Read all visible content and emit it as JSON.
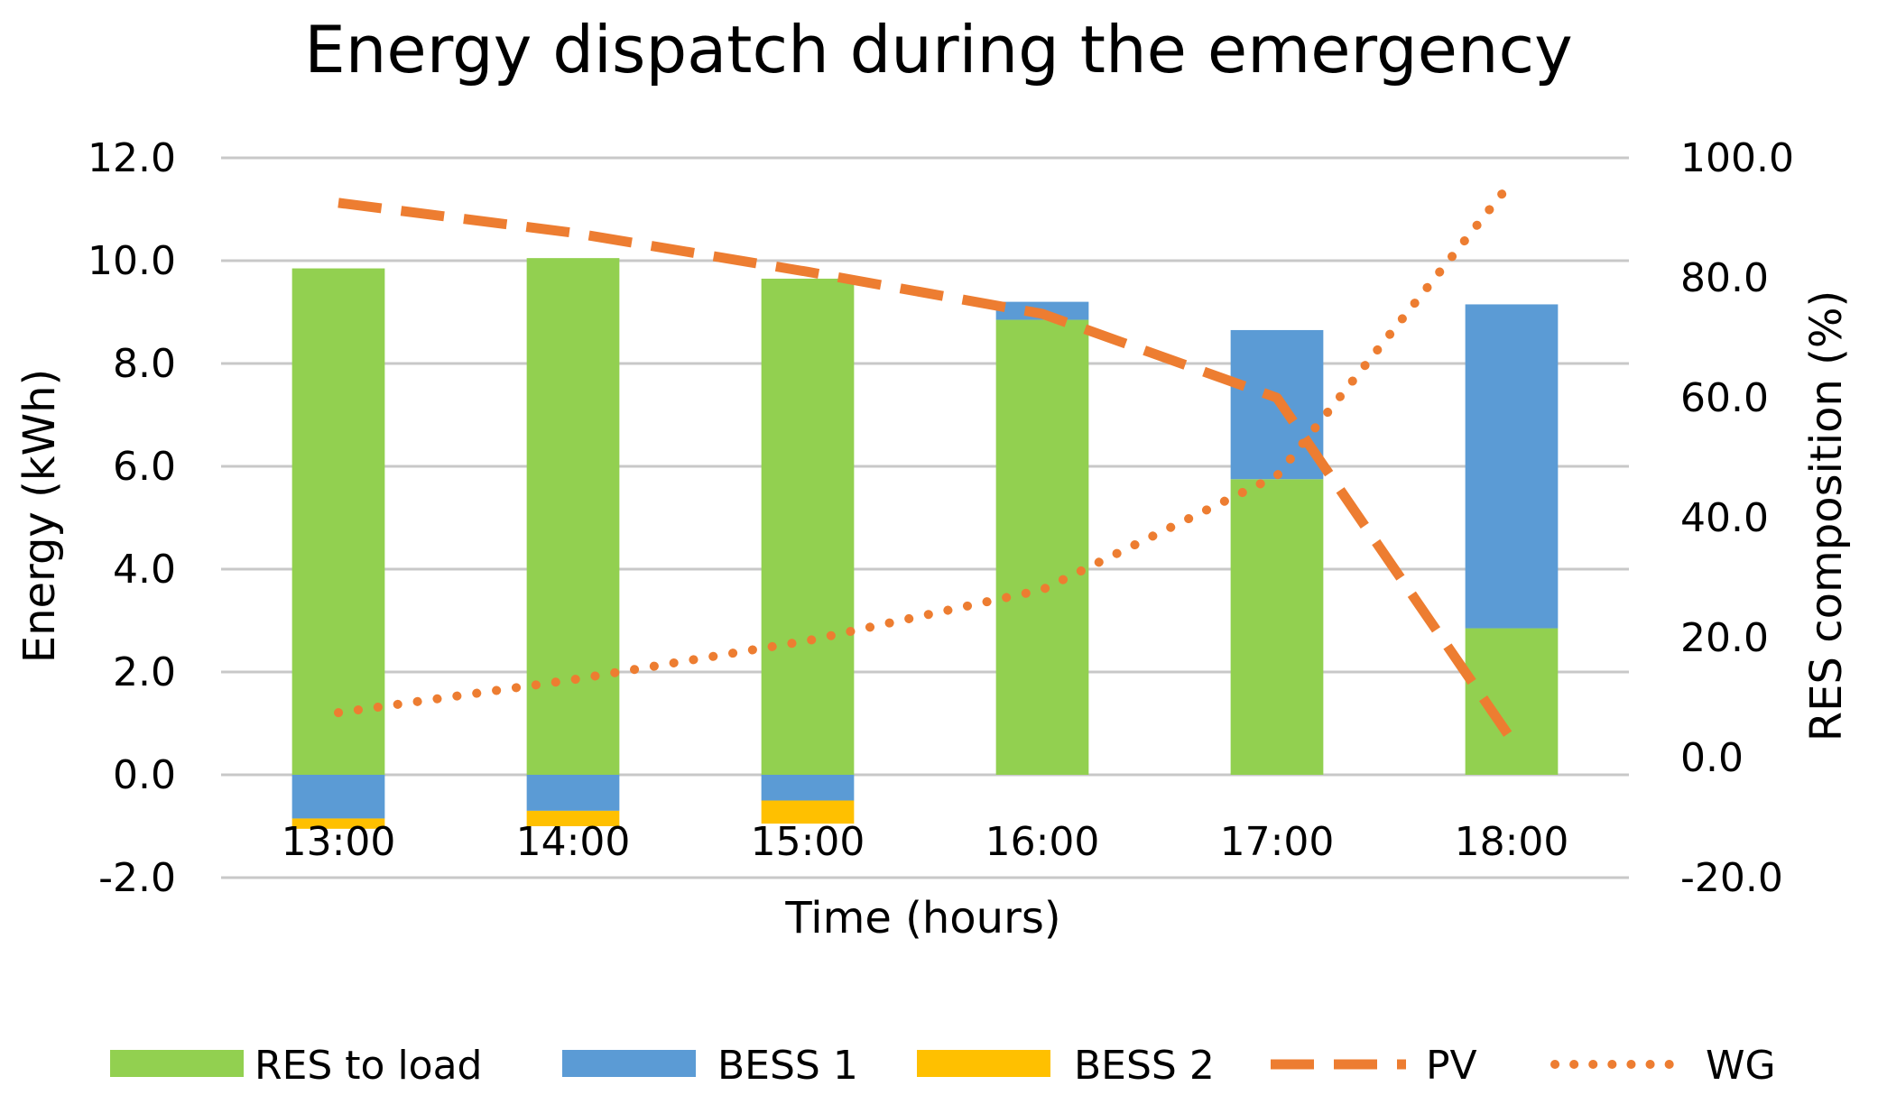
{
  "chart_data": {
    "type": "bar",
    "title": "Energy dispatch during the emergency",
    "xlabel": "Time (hours)",
    "ylabel": "Energy (kWh)",
    "y2label": "RES composition (%)",
    "categories": [
      "13:00",
      "14:00",
      "15:00",
      "16:00",
      "17:00",
      "18:00"
    ],
    "ylim": [
      -2,
      12
    ],
    "y2lim": [
      -20,
      100
    ],
    "yticks": [
      "-2.0",
      "0.0",
      "2.0",
      "4.0",
      "6.0",
      "8.0",
      "10.0",
      "12.0"
    ],
    "y2ticks": [
      "-20.0",
      "0.0",
      "20.0",
      "40.0",
      "60.0",
      "80.0",
      "100.0"
    ],
    "grid": true,
    "legend_position": "bottom",
    "series": [
      {
        "name": "RES to load",
        "type": "bar",
        "axis": "left",
        "color": "#92d050",
        "values": [
          9.85,
          10.05,
          9.65,
          8.85,
          5.75,
          2.85
        ]
      },
      {
        "name": "BESS 1",
        "type": "bar",
        "axis": "left",
        "color": "#5b9bd5",
        "values": [
          -0.85,
          -0.7,
          -0.5,
          0.35,
          2.9,
          6.3
        ]
      },
      {
        "name": "BESS 2",
        "type": "bar",
        "axis": "left",
        "color": "#ffc000",
        "values": [
          -0.2,
          -0.3,
          -0.45,
          0,
          0,
          0
        ]
      },
      {
        "name": "PV",
        "type": "line",
        "style": "dashed",
        "axis": "right",
        "color": "#ed7d31",
        "values": [
          92.5,
          87.5,
          81.0,
          74.0,
          60.0,
          3.0
        ]
      },
      {
        "name": "WG",
        "type": "line",
        "style": "dotted",
        "axis": "right",
        "color": "#ed7d31",
        "values": [
          7.5,
          13.0,
          19.5,
          28.0,
          47.0,
          96.0
        ]
      }
    ]
  }
}
